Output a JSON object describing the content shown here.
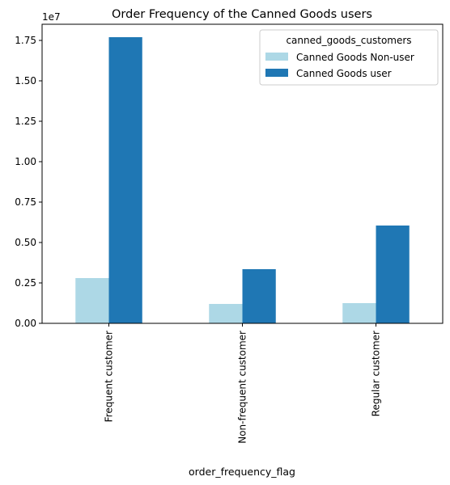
{
  "chart_data": {
    "type": "bar",
    "title": "Order Frequency of the Canned Goods users",
    "xlabel": "order_frequency_flag",
    "ylabel": "",
    "y_multiplier_label": "1e7",
    "y_scale": 10000000,
    "ylim": [
      0,
      1.85
    ],
    "yticks": [
      0.0,
      0.25,
      0.5,
      0.75,
      1.0,
      1.25,
      1.5,
      1.75
    ],
    "ytick_labels": [
      "0.00",
      "0.25",
      "0.50",
      "0.75",
      "1.00",
      "1.25",
      "1.50",
      "1.75"
    ],
    "categories": [
      "Frequent customer",
      "Non-frequent customer",
      "Regular customer"
    ],
    "legend": {
      "title": "canned_goods_customers",
      "placement": "upper right"
    },
    "series": [
      {
        "name": "Canned Goods Non-user",
        "color": "#add8e6",
        "values": [
          0.28,
          0.12,
          0.125
        ]
      },
      {
        "name": "Canned Goods user",
        "color": "#1f77b4",
        "values": [
          1.77,
          0.335,
          0.605
        ]
      }
    ]
  }
}
